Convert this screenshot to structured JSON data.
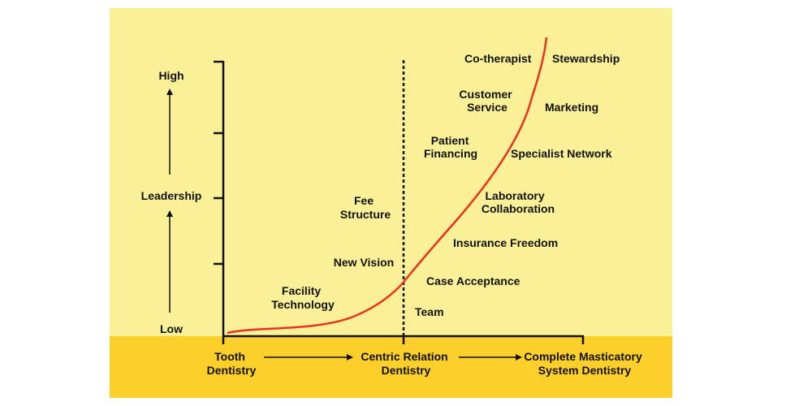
{
  "colors": {
    "top_band": "#faf098",
    "bottom_band": "#fccf2b",
    "curve": "#e8321e",
    "ink": "#111111"
  },
  "y_axis": {
    "label_high": "High",
    "label_mid": "Leadership",
    "label_low": "Low"
  },
  "x_axis": {
    "stage_1": [
      "Tooth",
      "Dentistry"
    ],
    "stage_2": [
      "Centric Relation",
      "Dentistry"
    ],
    "stage_3": [
      "Complete Masticatory",
      "System Dentistry"
    ]
  },
  "labels": {
    "facility_technology": [
      "Facility",
      "Technology"
    ],
    "new_vision": "New Vision",
    "fee_structure": [
      "Fee",
      "Structure"
    ],
    "team": "Team",
    "case_acceptance": "Case Acceptance",
    "insurance_freedom": "Insurance Freedom",
    "laboratory_collaboration": [
      "Laboratory",
      "Collaboration"
    ],
    "specialist_network": "Specialist Network",
    "patient_financing": [
      "Patient",
      "Financing"
    ],
    "marketing": "Marketing",
    "customer_service": [
      "Customer",
      "Service"
    ],
    "co_therapist": "Co-therapist",
    "stewardship": "Stewardship"
  }
}
